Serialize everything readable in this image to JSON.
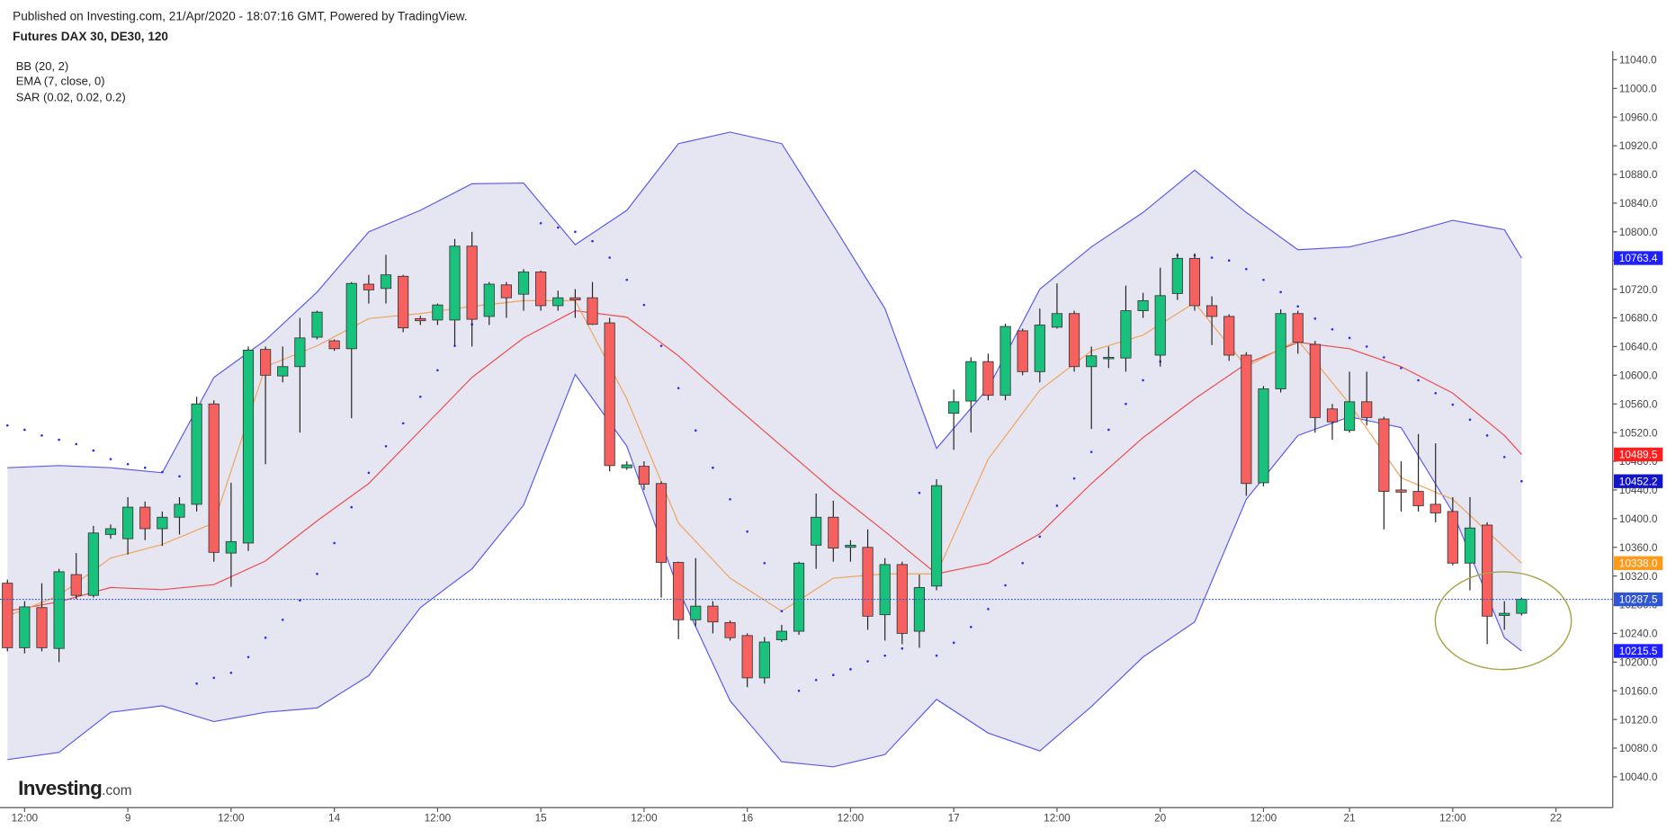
{
  "header": {
    "published": "Published on Investing.com, 21/Apr/2020 - 18:07:16 GMT, Powered by TradingView.",
    "instrument": "Futures DAX 30, DE30, 120"
  },
  "logo": {
    "main": "Investing",
    "suffix": ".com"
  },
  "chart_data": {
    "type": "candlestick",
    "xlim": [
      -0.43,
      93.3
    ],
    "ylim": [
      9997,
      11052
    ],
    "xticks": [
      {
        "value": 1,
        "label": "12:00"
      },
      {
        "value": 7,
        "label": "9"
      },
      {
        "value": 13,
        "label": "12:00"
      },
      {
        "value": 19,
        "label": "14"
      },
      {
        "value": 25,
        "label": "12:00"
      },
      {
        "value": 31,
        "label": "15"
      },
      {
        "value": 37,
        "label": "12:00"
      },
      {
        "value": 43,
        "label": "16"
      },
      {
        "value": 49,
        "label": "12:00"
      },
      {
        "value": 55,
        "label": "17"
      },
      {
        "value": 61,
        "label": "12:00"
      },
      {
        "value": 67,
        "label": "20"
      },
      {
        "value": 73,
        "label": "12:00"
      },
      {
        "value": 78,
        "label": "21"
      },
      {
        "value": 84,
        "label": "12:00"
      },
      {
        "value": 90,
        "label": "22"
      }
    ],
    "yticks": [
      {
        "value": 10040,
        "label": "10040.0"
      },
      {
        "value": 10080,
        "label": "10080.0"
      },
      {
        "value": 10120,
        "label": "10120.0"
      },
      {
        "value": 10160,
        "label": "10160.0"
      },
      {
        "value": 10200,
        "label": "10200.0"
      },
      {
        "value": 10240,
        "label": "10240.0"
      },
      {
        "value": 10280,
        "label": "10280.0"
      },
      {
        "value": 10320,
        "label": "10320.0"
      },
      {
        "value": 10360,
        "label": "10360.0"
      },
      {
        "value": 10400,
        "label": "10400.0"
      },
      {
        "value": 10440,
        "label": "10440.0"
      },
      {
        "value": 10480,
        "label": "10480.0"
      },
      {
        "value": 10520,
        "label": "10520.0"
      },
      {
        "value": 10560,
        "label": "10560.0"
      },
      {
        "value": 10600,
        "label": "10600.0"
      },
      {
        "value": 10640,
        "label": "10640.0"
      },
      {
        "value": 10680,
        "label": "10680.0"
      },
      {
        "value": 10720,
        "label": "10720.0"
      },
      {
        "value": 10760,
        "label": "10760.0"
      },
      {
        "value": 10800,
        "label": "10800.0"
      },
      {
        "value": 10840,
        "label": "10840.0"
      },
      {
        "value": 10880,
        "label": "10880.0"
      },
      {
        "value": 10920,
        "label": "10920.0"
      },
      {
        "value": 10960,
        "label": "10960.0"
      },
      {
        "value": 11000,
        "label": "11000.0"
      },
      {
        "value": 11040,
        "label": "11040.0"
      }
    ],
    "up_color": "#18c27c",
    "down_color": "#f6615f",
    "candles": {
      "open": [
        10310,
        10220,
        10276,
        10219,
        10322,
        10293,
        10378,
        10372,
        10416,
        10386,
        10402,
        10420,
        10560,
        10352,
        10366,
        10636,
        10599,
        10612,
        10653,
        10648,
        10637,
        10727,
        10721,
        10738,
        10679,
        10677,
        10677,
        10780,
        10682,
        10726,
        10713,
        10744,
        10697,
        10708,
        10708,
        10673,
        10471,
        10473,
        10449,
        10339,
        10259,
        10278,
        10255,
        10237,
        10178,
        10231,
        10243,
        10363,
        10402,
        10360,
        10360,
        10266,
        10336,
        10243,
        10306,
        10547,
        10564,
        10619,
        10572,
        10662,
        10605,
        10667,
        10686,
        10612,
        10623,
        10624,
        10690,
        10628,
        10714,
        10763,
        10697,
        10682,
        10628,
        10450,
        10581,
        10686,
        10643,
        10553,
        10523,
        10563,
        10539,
        10440,
        10438,
        10420,
        10410,
        10338,
        10391,
        10265,
        10268
      ],
      "high": [
        10315,
        10285,
        10310,
        10330,
        10352,
        10390,
        10392,
        10430,
        10424,
        10410,
        10430,
        10570,
        10565,
        10450,
        10640,
        10640,
        10640,
        10680,
        10690,
        10650,
        10730,
        10740,
        10768,
        10740,
        10683,
        10700,
        10790,
        10800,
        10730,
        10730,
        10748,
        10746,
        10718,
        10720,
        10730,
        10680,
        10480,
        10480,
        10452,
        10340,
        10345,
        10285,
        10258,
        10240,
        10235,
        10252,
        10340,
        10435,
        10425,
        10370,
        10385,
        10345,
        10340,
        10322,
        10455,
        10580,
        10625,
        10630,
        10672,
        10665,
        10693,
        10728,
        10690,
        10640,
        10640,
        10725,
        10715,
        10750,
        10770,
        10770,
        10710,
        10685,
        10632,
        10585,
        10692,
        10690,
        10648,
        10560,
        10605,
        10605,
        10542,
        10480,
        10518,
        10505,
        10430,
        10430,
        10395,
        10285,
        10290
      ],
      "low": [
        10215,
        10212,
        10215,
        10200,
        10288,
        10290,
        10372,
        10350,
        10370,
        10362,
        10378,
        10410,
        10340,
        10305,
        10355,
        10476,
        10590,
        10520,
        10650,
        10634,
        10540,
        10700,
        10700,
        10660,
        10670,
        10670,
        10642,
        10640,
        10670,
        10680,
        10690,
        10690,
        10690,
        10680,
        10670,
        10466,
        10468,
        10440,
        10290,
        10232,
        10250,
        10240,
        10230,
        10165,
        10170,
        10228,
        10238,
        10330,
        10340,
        10340,
        10245,
        10230,
        10225,
        10220,
        10300,
        10496,
        10520,
        10565,
        10565,
        10600,
        10590,
        10665,
        10605,
        10525,
        10610,
        10605,
        10680,
        10612,
        10705,
        10690,
        10642,
        10620,
        10432,
        10445,
        10576,
        10630,
        10520,
        10510,
        10520,
        10530,
        10385,
        10410,
        10410,
        10395,
        10335,
        10300,
        10225,
        10245,
        10265
      ],
      "close": [
        10220,
        10277,
        10220,
        10326,
        10293,
        10380,
        10386,
        10416,
        10386,
        10402,
        10420,
        10560,
        10353,
        10368,
        10635,
        10600,
        10612,
        10652,
        10688,
        10637,
        10728,
        10719,
        10740,
        10666,
        10676,
        10698,
        10780,
        10678,
        10727,
        10708,
        10744,
        10697,
        10708,
        10705,
        10671,
        10474,
        10475,
        10448,
        10339,
        10259,
        10278,
        10256,
        10234,
        10178,
        10228,
        10243,
        10338,
        10402,
        10359,
        10363,
        10264,
        10336,
        10240,
        10304,
        10446,
        10563,
        10619,
        10572,
        10668,
        10605,
        10670,
        10686,
        10612,
        10627,
        10625,
        10690,
        10704,
        10711,
        10763,
        10697,
        10682,
        10628,
        10449,
        10581,
        10686,
        10646,
        10541,
        10535,
        10563,
        10541,
        10438,
        10437,
        10418,
        10408,
        10338,
        10387,
        10264,
        10268,
        10287.5
      ]
    },
    "bb": {
      "label": "BB (20, 2)",
      "line_color": "#5a5af0",
      "fill_color": "#e6e6f3",
      "basis_color": "#ee4b4b",
      "x": [
        0,
        3,
        6,
        9,
        12,
        15,
        18,
        21,
        24,
        27,
        30,
        33,
        36,
        39,
        42,
        45,
        48,
        51,
        54,
        57,
        60,
        63,
        66,
        69,
        72,
        75,
        78,
        81,
        84,
        87,
        88
      ],
      "upper": [
        10471,
        10474,
        10471,
        10464,
        10597,
        10649,
        10716,
        10800,
        10830,
        10867,
        10868,
        10782,
        10830,
        10923,
        10939,
        10923,
        10809,
        10693,
        10498,
        10582,
        10720,
        10779,
        10827,
        10886,
        10827,
        10775,
        10779,
        10796,
        10816,
        10803,
        10763.4
      ],
      "basis": [
        10271,
        10284,
        10304,
        10301,
        10308,
        10341,
        10397,
        10449,
        10523,
        10597,
        10652,
        10690,
        10681,
        10627,
        10563,
        10501,
        10439,
        10382,
        10323,
        10338,
        10379,
        10449,
        10513,
        10567,
        10616,
        10646,
        10637,
        10612,
        10575,
        10516,
        10489.5
      ],
      "lower": [
        10064,
        10074,
        10130,
        10139,
        10117,
        10130,
        10136,
        10181,
        10276,
        10330,
        10419,
        10601,
        10501,
        10301,
        10146,
        10061,
        10054,
        10071,
        10148,
        10101,
        10076,
        10138,
        10207,
        10256,
        10427,
        10516,
        10542,
        10527,
        10409,
        10234,
        10215.5
      ]
    },
    "ema": {
      "label": "EMA (7, close, 0)",
      "color": "#f0a35a",
      "x": [
        0,
        3,
        6,
        9,
        12,
        15,
        18,
        21,
        24,
        27,
        30,
        33,
        36,
        39,
        42,
        45,
        48,
        51,
        54,
        57,
        60,
        63,
        66,
        69,
        72,
        75,
        78,
        81,
        84,
        87,
        88
      ],
      "values": [
        10264,
        10293,
        10345,
        10364,
        10394,
        10612,
        10641,
        10679,
        10686,
        10696,
        10704,
        10704,
        10567,
        10394,
        10317,
        10271,
        10317,
        10323,
        10323,
        10483,
        10579,
        10634,
        10656,
        10701,
        10612,
        10649,
        10560,
        10457,
        10427,
        10360,
        10338
      ]
    },
    "sar": {
      "label": "SAR (0.02, 0.02, 0.2)",
      "color": "#2b2bf0",
      "values": [
        10530,
        10524,
        10516,
        10510,
        10504,
        10495,
        10483,
        10476,
        10471,
        10465,
        10459,
        10170,
        10178,
        10185,
        10207,
        10234,
        10259,
        10286,
        10323,
        10366,
        10416,
        10464,
        10501,
        10533,
        10570,
        10607,
        10641,
        10671,
        10693,
        10711,
        10723,
        10812,
        10806,
        10800,
        10787,
        10764,
        10733,
        10698,
        10641,
        10582,
        10523,
        10471,
        10427,
        10382,
        10338,
        10271,
        10160,
        10175,
        10182,
        10190,
        10201,
        10209,
        10219,
        10436,
        10209,
        10227,
        10249,
        10274,
        10307,
        10338,
        10375,
        10418,
        10456,
        10493,
        10524,
        10560,
        10593,
        10619,
        10767,
        10767,
        10764,
        10760,
        10748,
        10733,
        10716,
        10696,
        10679,
        10664,
        10652,
        10640,
        10625,
        10610,
        10593,
        10575,
        10559,
        10538,
        10516,
        10486,
        10452.2
      ]
    },
    "price_line_color": "#2f55d4",
    "price_labels": [
      {
        "value": 10763.4,
        "label": "10763.4",
        "color": "#1f1fff"
      },
      {
        "value": 10489.5,
        "label": "10489.5",
        "color": "#ff1f1f"
      },
      {
        "value": 10452.2,
        "label": "10452.2",
        "color": "#1414c8"
      },
      {
        "value": 10338,
        "label": "10338.0",
        "color": "#ff9a1a"
      },
      {
        "value": 10287.5,
        "label": "10287.5",
        "color": "#2f55d4"
      },
      {
        "value": 10215.5,
        "label": "10215.5",
        "color": "#1f1fff"
      }
    ]
  }
}
